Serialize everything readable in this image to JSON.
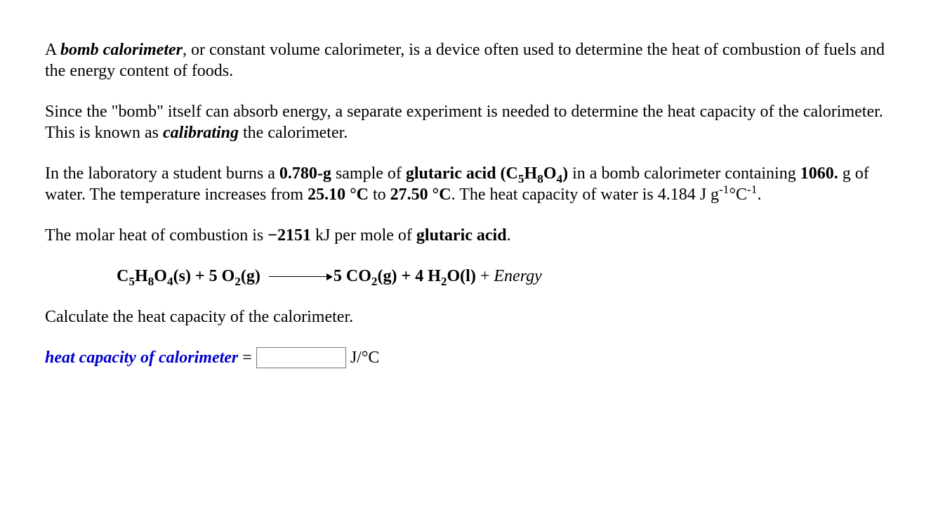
{
  "para1": {
    "t1": "A ",
    "term": "bomb calorimeter",
    "t2": ", or constant volume calorimeter, is a device often used to determine the heat of combustion of fuels and the energy content of foods."
  },
  "para2": {
    "t1": "Since the \"bomb\" itself can absorb energy, a separate experiment is needed to determine the heat capacity of the calorimeter. This is known as ",
    "term": "calibrating",
    "t2": " the calorimeter."
  },
  "para3": {
    "t1": "In the laboratory a student burns a ",
    "mass": "0.780-g",
    "t2": " sample of ",
    "substance": "glutaric acid (C",
    "sub1": "5",
    "mid1": "H",
    "sub2": "8",
    "mid2": "O",
    "sub3": "4",
    "close": ")",
    "t3": " in a bomb calorimeter containing ",
    "water_mass": "1060.",
    "t4": " g of water. The temperature increases from ",
    "t_from": "25.10 °C",
    "t5": " to ",
    "t_to": "27.50 °C",
    "t6": ". The heat capacity of water is 4.184 J g",
    "sup1": "-1",
    "mid3": "°C",
    "sup2": "-1",
    "t7": "."
  },
  "para4": {
    "t1": "The molar heat of combustion is ",
    "val": "−2151",
    "t2": " kJ per mole of ",
    "substance": "glutaric acid",
    "t3": "."
  },
  "equation": {
    "l1": "C",
    "ls1": "5",
    "l2": "H",
    "ls2": "8",
    "l3": "O",
    "ls3": "4",
    "l4": "(s) + 5 O",
    "ls4": "2",
    "l5": "(g)",
    "r1": "5 CO",
    "rs1": "2",
    "r2": "(g) + 4 H",
    "rs2": "2",
    "r3": "O(l)",
    "plus": " + ",
    "energy": "Energy"
  },
  "para5": "Calculate the heat capacity of the calorimeter.",
  "answer": {
    "label": "heat capacity of calorimeter",
    "eq": " = ",
    "unit": " J/°C"
  },
  "style": {
    "font_family": "Times New Roman",
    "font_size_pt": 18,
    "text_color": "#000000",
    "answer_label_color": "#0000cc",
    "background": "#ffffff",
    "input_border": "#777777"
  }
}
